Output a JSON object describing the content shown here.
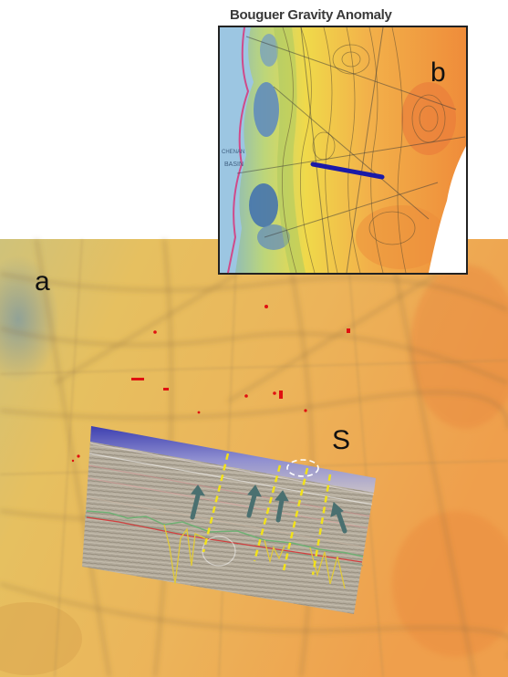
{
  "panels": {
    "a_label": "a",
    "b_label": "b",
    "s_label": "S"
  },
  "inset": {
    "title": "Bouguer Gravity Anomaly",
    "map_labels": [
      "CHENAN",
      "BASIN"
    ]
  },
  "colors": {
    "low_anomaly": "#2f6fb8",
    "mid_anomaly": "#e8d23a",
    "high_anomaly": "#e98a3c",
    "profile_line": "#1a1aa8",
    "fault_dash": "#f2e21a",
    "arrows": "#4a7070",
    "points": "#e01010"
  },
  "icons": [
    "up-arrow-icon",
    "up-arrow-icon",
    "up-arrow-icon",
    "up-arrow-icon"
  ]
}
